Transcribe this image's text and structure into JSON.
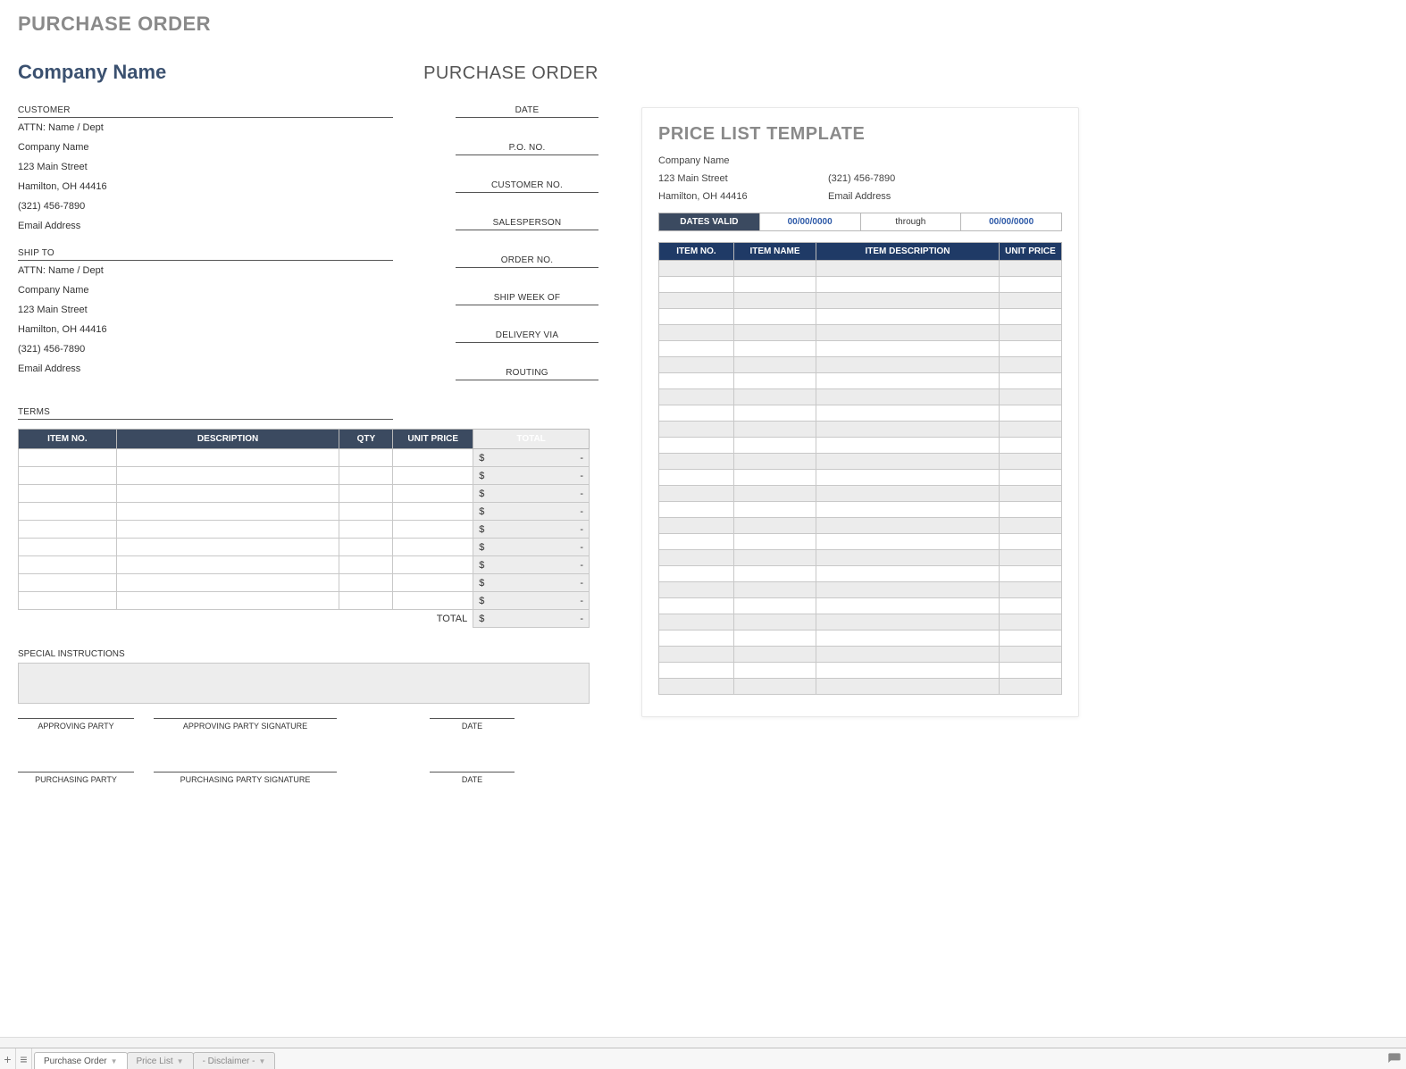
{
  "colors": {
    "heading_gray": "#8a8a8a",
    "company_blue": "#3b5170",
    "table_header_bg": "#3b4a60",
    "pricelist_header_bg": "#1f3a66",
    "table_header_text": "#ffffff",
    "grid_bg_alt": "#ededed",
    "border": "#c8c8c8",
    "date_blue": "#2e5aa8"
  },
  "po": {
    "doc_heading": "PURCHASE ORDER",
    "company_name": "Company Name",
    "title": "PURCHASE ORDER",
    "customer": {
      "label": "CUSTOMER",
      "attn": "ATTN: Name / Dept",
      "company": "Company Name",
      "street": "123 Main Street",
      "city": "Hamilton, OH  44416",
      "phone": "(321) 456-7890",
      "email": "Email Address"
    },
    "ship_to": {
      "label": "SHIP TO",
      "attn": "ATTN: Name / Dept",
      "company": "Company Name",
      "street": "123 Main Street",
      "city": "Hamilton, OH  44416",
      "phone": "(321) 456-7890",
      "email": "Email Address"
    },
    "terms_label": "TERMS",
    "right_fields": [
      "DATE",
      "P.O. NO.",
      "CUSTOMER NO.",
      "SALESPERSON",
      "ORDER NO.",
      "SHIP WEEK OF",
      "DELIVERY VIA",
      "ROUTING"
    ],
    "table": {
      "columns": [
        "ITEM NO.",
        "DESCRIPTION",
        "QTY",
        "UNIT PRICE",
        "TOTAL"
      ],
      "row_count": 9,
      "total_currency": "$",
      "total_dash": "-",
      "footer_label": "TOTAL"
    },
    "special_label": "SPECIAL INSTRUCTIONS",
    "sig1": {
      "a": "APPROVING PARTY",
      "b": "APPROVING PARTY SIGNATURE",
      "c": "DATE"
    },
    "sig2": {
      "a": "PURCHASING PARTY",
      "b": "PURCHASING PARTY SIGNATURE",
      "c": "DATE"
    }
  },
  "pl": {
    "title": "PRICE LIST TEMPLATE",
    "company": "Company Name",
    "street": "123 Main Street",
    "city": "Hamilton, OH  44416",
    "phone": "(321) 456-7890",
    "email": "Email Address",
    "dates": {
      "label": "DATES VALID",
      "from": "00/00/0000",
      "through": "through",
      "to": "00/00/0000"
    },
    "columns": [
      "ITEM NO.",
      "ITEM NAME",
      "ITEM DESCRIPTION",
      "UNIT PRICE"
    ],
    "row_count": 27
  },
  "tabs": {
    "active": "Purchase Order",
    "second": "Price List",
    "third": "- Disclaimer -"
  }
}
